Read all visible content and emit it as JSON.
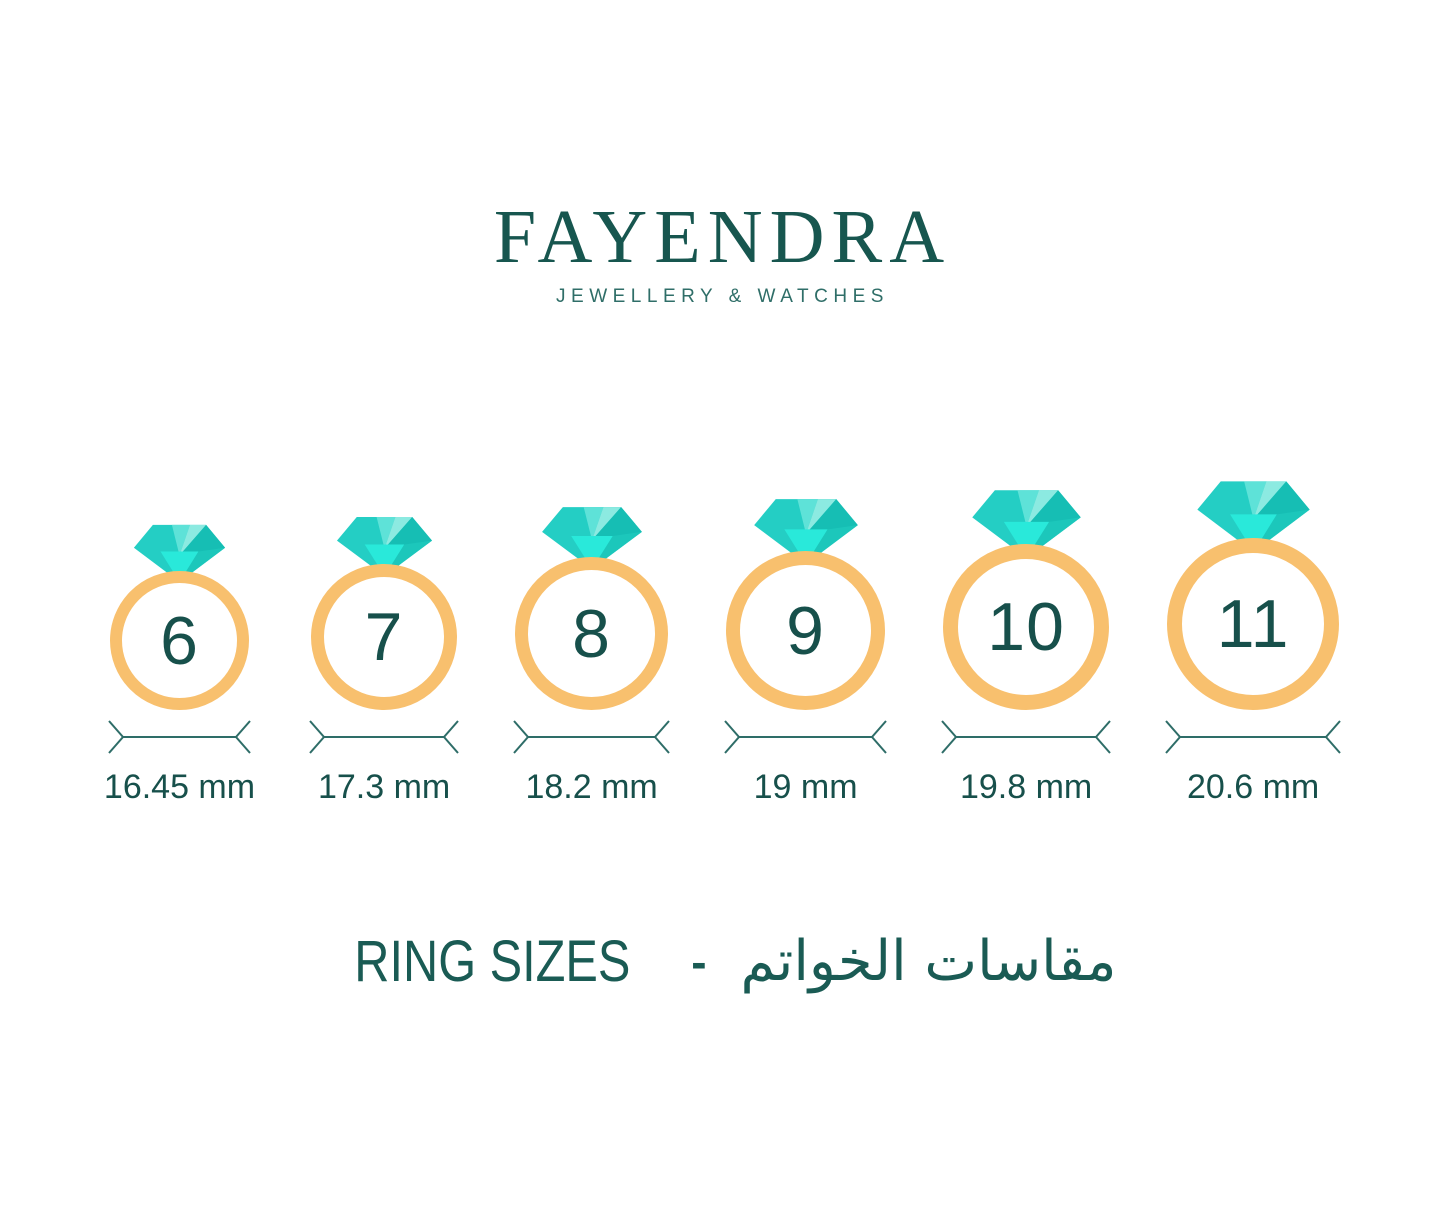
{
  "brand": {
    "name": "FAYENDRA",
    "tagline": "JEWELLERY & WATCHES"
  },
  "rings": [
    {
      "size": "6",
      "mm": 16.45,
      "label": "16.45 mm"
    },
    {
      "size": "7",
      "mm": 17.3,
      "label": "17.3 mm"
    },
    {
      "size": "8",
      "mm": 18.2,
      "label": "18.2 mm"
    },
    {
      "size": "9",
      "mm": 19,
      "label": "19 mm"
    },
    {
      "size": "10",
      "mm": 19.8,
      "label": "19.8 mm"
    },
    {
      "size": "11",
      "mm": 20.6,
      "label": "20.6 mm"
    }
  ],
  "footer": {
    "title_en": "RING SIZES",
    "separator": "-",
    "title_ar": "مقاسات الخواتم"
  },
  "colors": {
    "background": "#ffffff",
    "brand_teal": "#17564f",
    "tagline_teal": "#2f6e68",
    "band_gold": "#f8c06e",
    "number_teal": "#17504b",
    "line_teal": "#2e6d68",
    "title_teal": "#1a5b54",
    "diamond": {
      "base": "#24cec4",
      "crown_center": "#5ee2d8",
      "crown_light": "#8ceae1",
      "crown_right": "#16beb4",
      "pavilion_center": "#29e9da",
      "pavilion_right": "#1cc7bb"
    }
  }
}
